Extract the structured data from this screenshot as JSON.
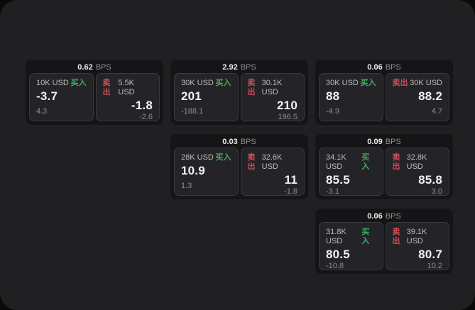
{
  "labels": {
    "bps_unit": "BPS",
    "buy": "买入",
    "sell": "卖出"
  },
  "colors": {
    "buy_green": "#3fae5e",
    "sell_red": "#d14b59",
    "page_bg": "#0a0a0a",
    "panel_bg": "#202023",
    "card_bg": "#151517",
    "subpanel_bg": "#242428"
  },
  "cards": [
    {
      "col": 1,
      "row": 1,
      "bps": "0.62",
      "buy": {
        "amount": "10K USD",
        "value": "-3.7",
        "delta": "4.3"
      },
      "sell": {
        "amount": "5.5K USD",
        "value": "-1.8",
        "delta": "-2.6"
      }
    },
    {
      "col": 2,
      "row": 1,
      "bps": "2.92",
      "buy": {
        "amount": "30K USD",
        "value": "201",
        "delta": "-188.1"
      },
      "sell": {
        "amount": "30.1K USD",
        "value": "210",
        "delta": "196.5"
      }
    },
    {
      "col": 3,
      "row": 1,
      "bps": "0.06",
      "buy": {
        "amount": "30K USD",
        "value": "88",
        "delta": "-4.9"
      },
      "sell": {
        "amount": "30K USD",
        "value": "88.2",
        "delta": "4.7"
      }
    },
    {
      "col": 2,
      "row": 2,
      "bps": "0.03",
      "buy": {
        "amount": "28K USD",
        "value": "10.9",
        "delta": "1.3"
      },
      "sell": {
        "amount": "32.6K USD",
        "value": "11",
        "delta": "-1.8"
      }
    },
    {
      "col": 3,
      "row": 2,
      "bps": "0.09",
      "buy": {
        "amount": "34.1K USD",
        "value": "85.5",
        "delta": "-3.1"
      },
      "sell": {
        "amount": "32.8K USD",
        "value": "85.8",
        "delta": "3.0"
      }
    },
    {
      "col": 3,
      "row": 3,
      "bps": "0.06",
      "buy": {
        "amount": "31.8K USD",
        "value": "80.5",
        "delta": "-10.8"
      },
      "sell": {
        "amount": "39.1K USD",
        "value": "80.7",
        "delta": "10.2"
      }
    }
  ]
}
